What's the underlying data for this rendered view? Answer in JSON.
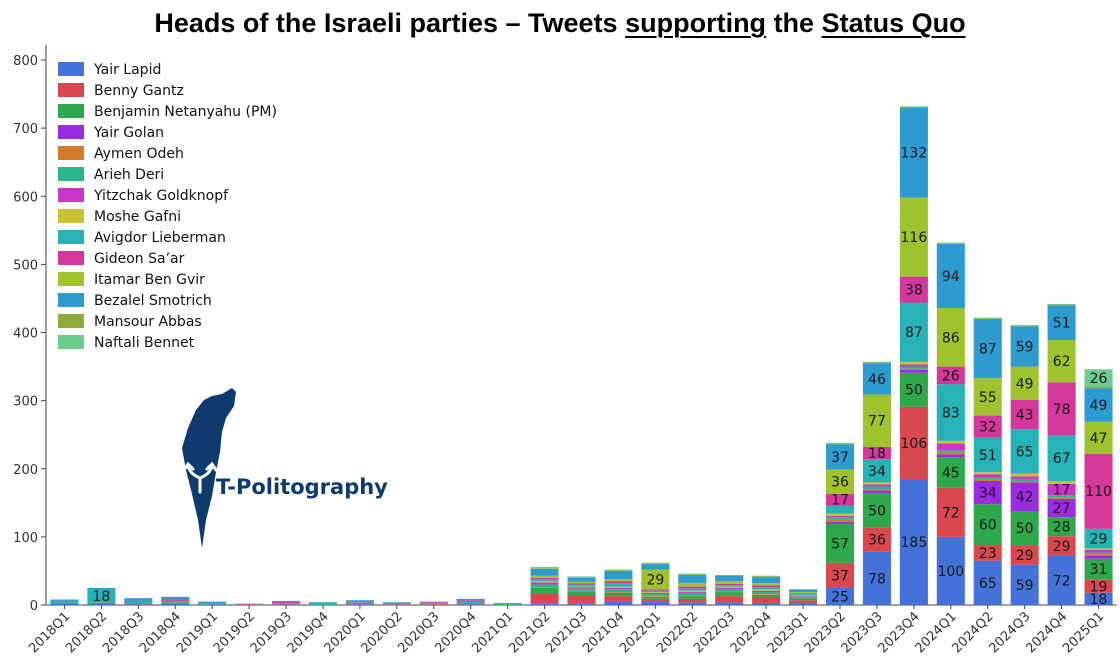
{
  "chart_data": {
    "type": "bar",
    "stacked": true,
    "title_parts": [
      {
        "text": "Heads of the Israeli parties – Tweets ",
        "underline": false
      },
      {
        "text": "supporting",
        "underline": true
      },
      {
        "text": " the ",
        "underline": false
      },
      {
        "text": "Status Quo",
        "underline": true
      }
    ],
    "ylim": [
      0,
      800
    ],
    "yticks": [
      0,
      100,
      200,
      300,
      400,
      500,
      600,
      700,
      800
    ],
    "grid": false,
    "legend_position": "top-left",
    "categories": [
      "2018Q1",
      "2018Q2",
      "2018Q3",
      "2018Q4",
      "2019Q1",
      "2019Q2",
      "2019Q3",
      "2019Q4",
      "2020Q1",
      "2020Q2",
      "2020Q3",
      "2020Q4",
      "2021Q1",
      "2021Q2",
      "2021Q3",
      "2021Q4",
      "2022Q1",
      "2022Q2",
      "2022Q3",
      "2022Q4",
      "2023Q1",
      "2023Q2",
      "2023Q3",
      "2023Q4",
      "2024Q1",
      "2024Q2",
      "2024Q3",
      "2024Q4",
      "2025Q1"
    ],
    "series": [
      {
        "name": "Yair Lapid",
        "color": "#4472d8",
        "values": [
          2,
          2,
          1,
          2,
          1,
          0,
          1,
          0,
          1,
          0,
          0,
          1,
          0,
          2,
          2,
          5,
          5,
          4,
          4,
          3,
          3,
          25,
          78,
          185,
          100,
          65,
          59,
          72,
          18
        ]
      },
      {
        "name": "Benny Gantz",
        "color": "#d9474f",
        "values": [
          1,
          1,
          1,
          1,
          0,
          0,
          1,
          0,
          1,
          1,
          1,
          1,
          0,
          15,
          12,
          8,
          4,
          5,
          9,
          8,
          4,
          37,
          36,
          106,
          72,
          23,
          29,
          29,
          19
        ]
      },
      {
        "name": "Benjamin Netanyahu (PM)",
        "color": "#2ea84a",
        "values": [
          1,
          1,
          1,
          1,
          1,
          0,
          0,
          1,
          1,
          0,
          1,
          1,
          1,
          8,
          6,
          5,
          3,
          4,
          6,
          4,
          3,
          57,
          50,
          50,
          45,
          60,
          50,
          28,
          31
        ]
      },
      {
        "name": "Yair Golan",
        "color": "#9b2be2",
        "values": [
          0,
          0,
          0,
          0,
          0,
          0,
          0,
          0,
          0,
          0,
          0,
          0,
          0,
          0,
          0,
          0,
          0,
          0,
          0,
          0,
          0,
          3,
          4,
          4,
          4,
          34,
          42,
          27,
          4
        ]
      },
      {
        "name": "Aymen Odeh",
        "color": "#d27a2a",
        "values": [
          0,
          0,
          0,
          0,
          0,
          0,
          0,
          0,
          0,
          0,
          0,
          0,
          0,
          1,
          1,
          1,
          1,
          1,
          1,
          1,
          0,
          3,
          2,
          2,
          3,
          2,
          2,
          2,
          3
        ]
      },
      {
        "name": "Arieh Deri",
        "color": "#2bb58a",
        "values": [
          0,
          0,
          0,
          0,
          0,
          0,
          0,
          0,
          0,
          0,
          0,
          0,
          0,
          4,
          3,
          4,
          3,
          3,
          3,
          3,
          2,
          4,
          4,
          3,
          3,
          3,
          3,
          3,
          2
        ]
      },
      {
        "name": "Yitzchak Goldknopf",
        "color": "#c934c9",
        "values": [
          0,
          0,
          0,
          0,
          0,
          0,
          0,
          0,
          0,
          0,
          0,
          0,
          0,
          3,
          2,
          2,
          2,
          2,
          2,
          2,
          1,
          2,
          3,
          3,
          10,
          5,
          4,
          17,
          4
        ]
      },
      {
        "name": "Moshe Gafni",
        "color": "#c9c12f",
        "values": [
          0,
          0,
          0,
          0,
          0,
          0,
          0,
          0,
          0,
          0,
          0,
          0,
          0,
          2,
          1,
          2,
          1,
          2,
          2,
          2,
          1,
          3,
          3,
          4,
          4,
          3,
          4,
          4,
          2
        ]
      },
      {
        "name": "Avigdor Lieberman",
        "color": "#25b3b8",
        "values": [
          1,
          18,
          2,
          2,
          1,
          0,
          1,
          1,
          1,
          1,
          1,
          2,
          1,
          3,
          3,
          5,
          2,
          3,
          2,
          3,
          2,
          12,
          34,
          87,
          83,
          51,
          65,
          67,
          29
        ]
      },
      {
        "name": "Gideon Sa’ar",
        "color": "#d6379a",
        "values": [
          1,
          1,
          1,
          2,
          0,
          1,
          2,
          1,
          1,
          1,
          1,
          2,
          0,
          2,
          2,
          3,
          2,
          3,
          2,
          3,
          1,
          17,
          18,
          38,
          26,
          32,
          43,
          78,
          110
        ]
      },
      {
        "name": "Itamar Ben Gvir",
        "color": "#9fc22f",
        "values": [
          0,
          0,
          0,
          0,
          0,
          0,
          0,
          0,
          0,
          0,
          0,
          0,
          0,
          3,
          2,
          3,
          29,
          5,
          4,
          3,
          2,
          36,
          77,
          116,
          86,
          55,
          49,
          62,
          47
        ]
      },
      {
        "name": "Bezalel Smotrich",
        "color": "#2e9bd0",
        "values": [
          2,
          2,
          4,
          4,
          2,
          1,
          1,
          1,
          2,
          1,
          1,
          2,
          1,
          10,
          6,
          12,
          8,
          12,
          8,
          9,
          4,
          37,
          46,
          132,
          94,
          87,
          59,
          51,
          49
        ]
      },
      {
        "name": "Mansour Abbas",
        "color": "#8eaa3a",
        "values": [
          0,
          0,
          0,
          0,
          0,
          0,
          0,
          0,
          0,
          0,
          0,
          0,
          0,
          1,
          1,
          1,
          1,
          1,
          1,
          1,
          0,
          1,
          1,
          1,
          1,
          1,
          1,
          1,
          2
        ]
      },
      {
        "name": "Naftali Bennet",
        "color": "#6ccb8e",
        "values": [
          0,
          0,
          0,
          0,
          0,
          0,
          0,
          0,
          0,
          0,
          0,
          0,
          0,
          2,
          1,
          1,
          1,
          1,
          0,
          1,
          0,
          1,
          1,
          1,
          1,
          1,
          1,
          1,
          26
        ]
      }
    ]
  },
  "logo": {
    "name": "T-Politography",
    "text": "T-Politography"
  }
}
